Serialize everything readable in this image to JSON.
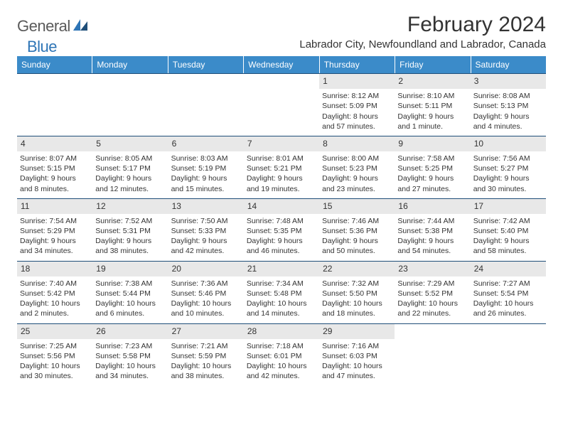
{
  "logo": {
    "text1": "General",
    "text2": "Blue"
  },
  "title": "February 2024",
  "subtitle": "Labrador City, Newfoundland and Labrador, Canada",
  "colors": {
    "header_bg": "#3b8bc9",
    "header_text": "#ffffff",
    "divider": "#1f4e79",
    "daynum_bg": "#e8e8e8",
    "body_text": "#333333",
    "logo_gray": "#5a5a5a",
    "logo_blue": "#2e75b6"
  },
  "weekdays": [
    "Sunday",
    "Monday",
    "Tuesday",
    "Wednesday",
    "Thursday",
    "Friday",
    "Saturday"
  ],
  "weeks": [
    [
      {
        "num": "",
        "sunrise": "",
        "sunset": "",
        "daylight": ""
      },
      {
        "num": "",
        "sunrise": "",
        "sunset": "",
        "daylight": ""
      },
      {
        "num": "",
        "sunrise": "",
        "sunset": "",
        "daylight": ""
      },
      {
        "num": "",
        "sunrise": "",
        "sunset": "",
        "daylight": ""
      },
      {
        "num": "1",
        "sunrise": "Sunrise: 8:12 AM",
        "sunset": "Sunset: 5:09 PM",
        "daylight": "Daylight: 8 hours and 57 minutes."
      },
      {
        "num": "2",
        "sunrise": "Sunrise: 8:10 AM",
        "sunset": "Sunset: 5:11 PM",
        "daylight": "Daylight: 9 hours and 1 minute."
      },
      {
        "num": "3",
        "sunrise": "Sunrise: 8:08 AM",
        "sunset": "Sunset: 5:13 PM",
        "daylight": "Daylight: 9 hours and 4 minutes."
      }
    ],
    [
      {
        "num": "4",
        "sunrise": "Sunrise: 8:07 AM",
        "sunset": "Sunset: 5:15 PM",
        "daylight": "Daylight: 9 hours and 8 minutes."
      },
      {
        "num": "5",
        "sunrise": "Sunrise: 8:05 AM",
        "sunset": "Sunset: 5:17 PM",
        "daylight": "Daylight: 9 hours and 12 minutes."
      },
      {
        "num": "6",
        "sunrise": "Sunrise: 8:03 AM",
        "sunset": "Sunset: 5:19 PM",
        "daylight": "Daylight: 9 hours and 15 minutes."
      },
      {
        "num": "7",
        "sunrise": "Sunrise: 8:01 AM",
        "sunset": "Sunset: 5:21 PM",
        "daylight": "Daylight: 9 hours and 19 minutes."
      },
      {
        "num": "8",
        "sunrise": "Sunrise: 8:00 AM",
        "sunset": "Sunset: 5:23 PM",
        "daylight": "Daylight: 9 hours and 23 minutes."
      },
      {
        "num": "9",
        "sunrise": "Sunrise: 7:58 AM",
        "sunset": "Sunset: 5:25 PM",
        "daylight": "Daylight: 9 hours and 27 minutes."
      },
      {
        "num": "10",
        "sunrise": "Sunrise: 7:56 AM",
        "sunset": "Sunset: 5:27 PM",
        "daylight": "Daylight: 9 hours and 30 minutes."
      }
    ],
    [
      {
        "num": "11",
        "sunrise": "Sunrise: 7:54 AM",
        "sunset": "Sunset: 5:29 PM",
        "daylight": "Daylight: 9 hours and 34 minutes."
      },
      {
        "num": "12",
        "sunrise": "Sunrise: 7:52 AM",
        "sunset": "Sunset: 5:31 PM",
        "daylight": "Daylight: 9 hours and 38 minutes."
      },
      {
        "num": "13",
        "sunrise": "Sunrise: 7:50 AM",
        "sunset": "Sunset: 5:33 PM",
        "daylight": "Daylight: 9 hours and 42 minutes."
      },
      {
        "num": "14",
        "sunrise": "Sunrise: 7:48 AM",
        "sunset": "Sunset: 5:35 PM",
        "daylight": "Daylight: 9 hours and 46 minutes."
      },
      {
        "num": "15",
        "sunrise": "Sunrise: 7:46 AM",
        "sunset": "Sunset: 5:36 PM",
        "daylight": "Daylight: 9 hours and 50 minutes."
      },
      {
        "num": "16",
        "sunrise": "Sunrise: 7:44 AM",
        "sunset": "Sunset: 5:38 PM",
        "daylight": "Daylight: 9 hours and 54 minutes."
      },
      {
        "num": "17",
        "sunrise": "Sunrise: 7:42 AM",
        "sunset": "Sunset: 5:40 PM",
        "daylight": "Daylight: 9 hours and 58 minutes."
      }
    ],
    [
      {
        "num": "18",
        "sunrise": "Sunrise: 7:40 AM",
        "sunset": "Sunset: 5:42 PM",
        "daylight": "Daylight: 10 hours and 2 minutes."
      },
      {
        "num": "19",
        "sunrise": "Sunrise: 7:38 AM",
        "sunset": "Sunset: 5:44 PM",
        "daylight": "Daylight: 10 hours and 6 minutes."
      },
      {
        "num": "20",
        "sunrise": "Sunrise: 7:36 AM",
        "sunset": "Sunset: 5:46 PM",
        "daylight": "Daylight: 10 hours and 10 minutes."
      },
      {
        "num": "21",
        "sunrise": "Sunrise: 7:34 AM",
        "sunset": "Sunset: 5:48 PM",
        "daylight": "Daylight: 10 hours and 14 minutes."
      },
      {
        "num": "22",
        "sunrise": "Sunrise: 7:32 AM",
        "sunset": "Sunset: 5:50 PM",
        "daylight": "Daylight: 10 hours and 18 minutes."
      },
      {
        "num": "23",
        "sunrise": "Sunrise: 7:29 AM",
        "sunset": "Sunset: 5:52 PM",
        "daylight": "Daylight: 10 hours and 22 minutes."
      },
      {
        "num": "24",
        "sunrise": "Sunrise: 7:27 AM",
        "sunset": "Sunset: 5:54 PM",
        "daylight": "Daylight: 10 hours and 26 minutes."
      }
    ],
    [
      {
        "num": "25",
        "sunrise": "Sunrise: 7:25 AM",
        "sunset": "Sunset: 5:56 PM",
        "daylight": "Daylight: 10 hours and 30 minutes."
      },
      {
        "num": "26",
        "sunrise": "Sunrise: 7:23 AM",
        "sunset": "Sunset: 5:58 PM",
        "daylight": "Daylight: 10 hours and 34 minutes."
      },
      {
        "num": "27",
        "sunrise": "Sunrise: 7:21 AM",
        "sunset": "Sunset: 5:59 PM",
        "daylight": "Daylight: 10 hours and 38 minutes."
      },
      {
        "num": "28",
        "sunrise": "Sunrise: 7:18 AM",
        "sunset": "Sunset: 6:01 PM",
        "daylight": "Daylight: 10 hours and 42 minutes."
      },
      {
        "num": "29",
        "sunrise": "Sunrise: 7:16 AM",
        "sunset": "Sunset: 6:03 PM",
        "daylight": "Daylight: 10 hours and 47 minutes."
      },
      {
        "num": "",
        "sunrise": "",
        "sunset": "",
        "daylight": ""
      },
      {
        "num": "",
        "sunrise": "",
        "sunset": "",
        "daylight": ""
      }
    ]
  ]
}
